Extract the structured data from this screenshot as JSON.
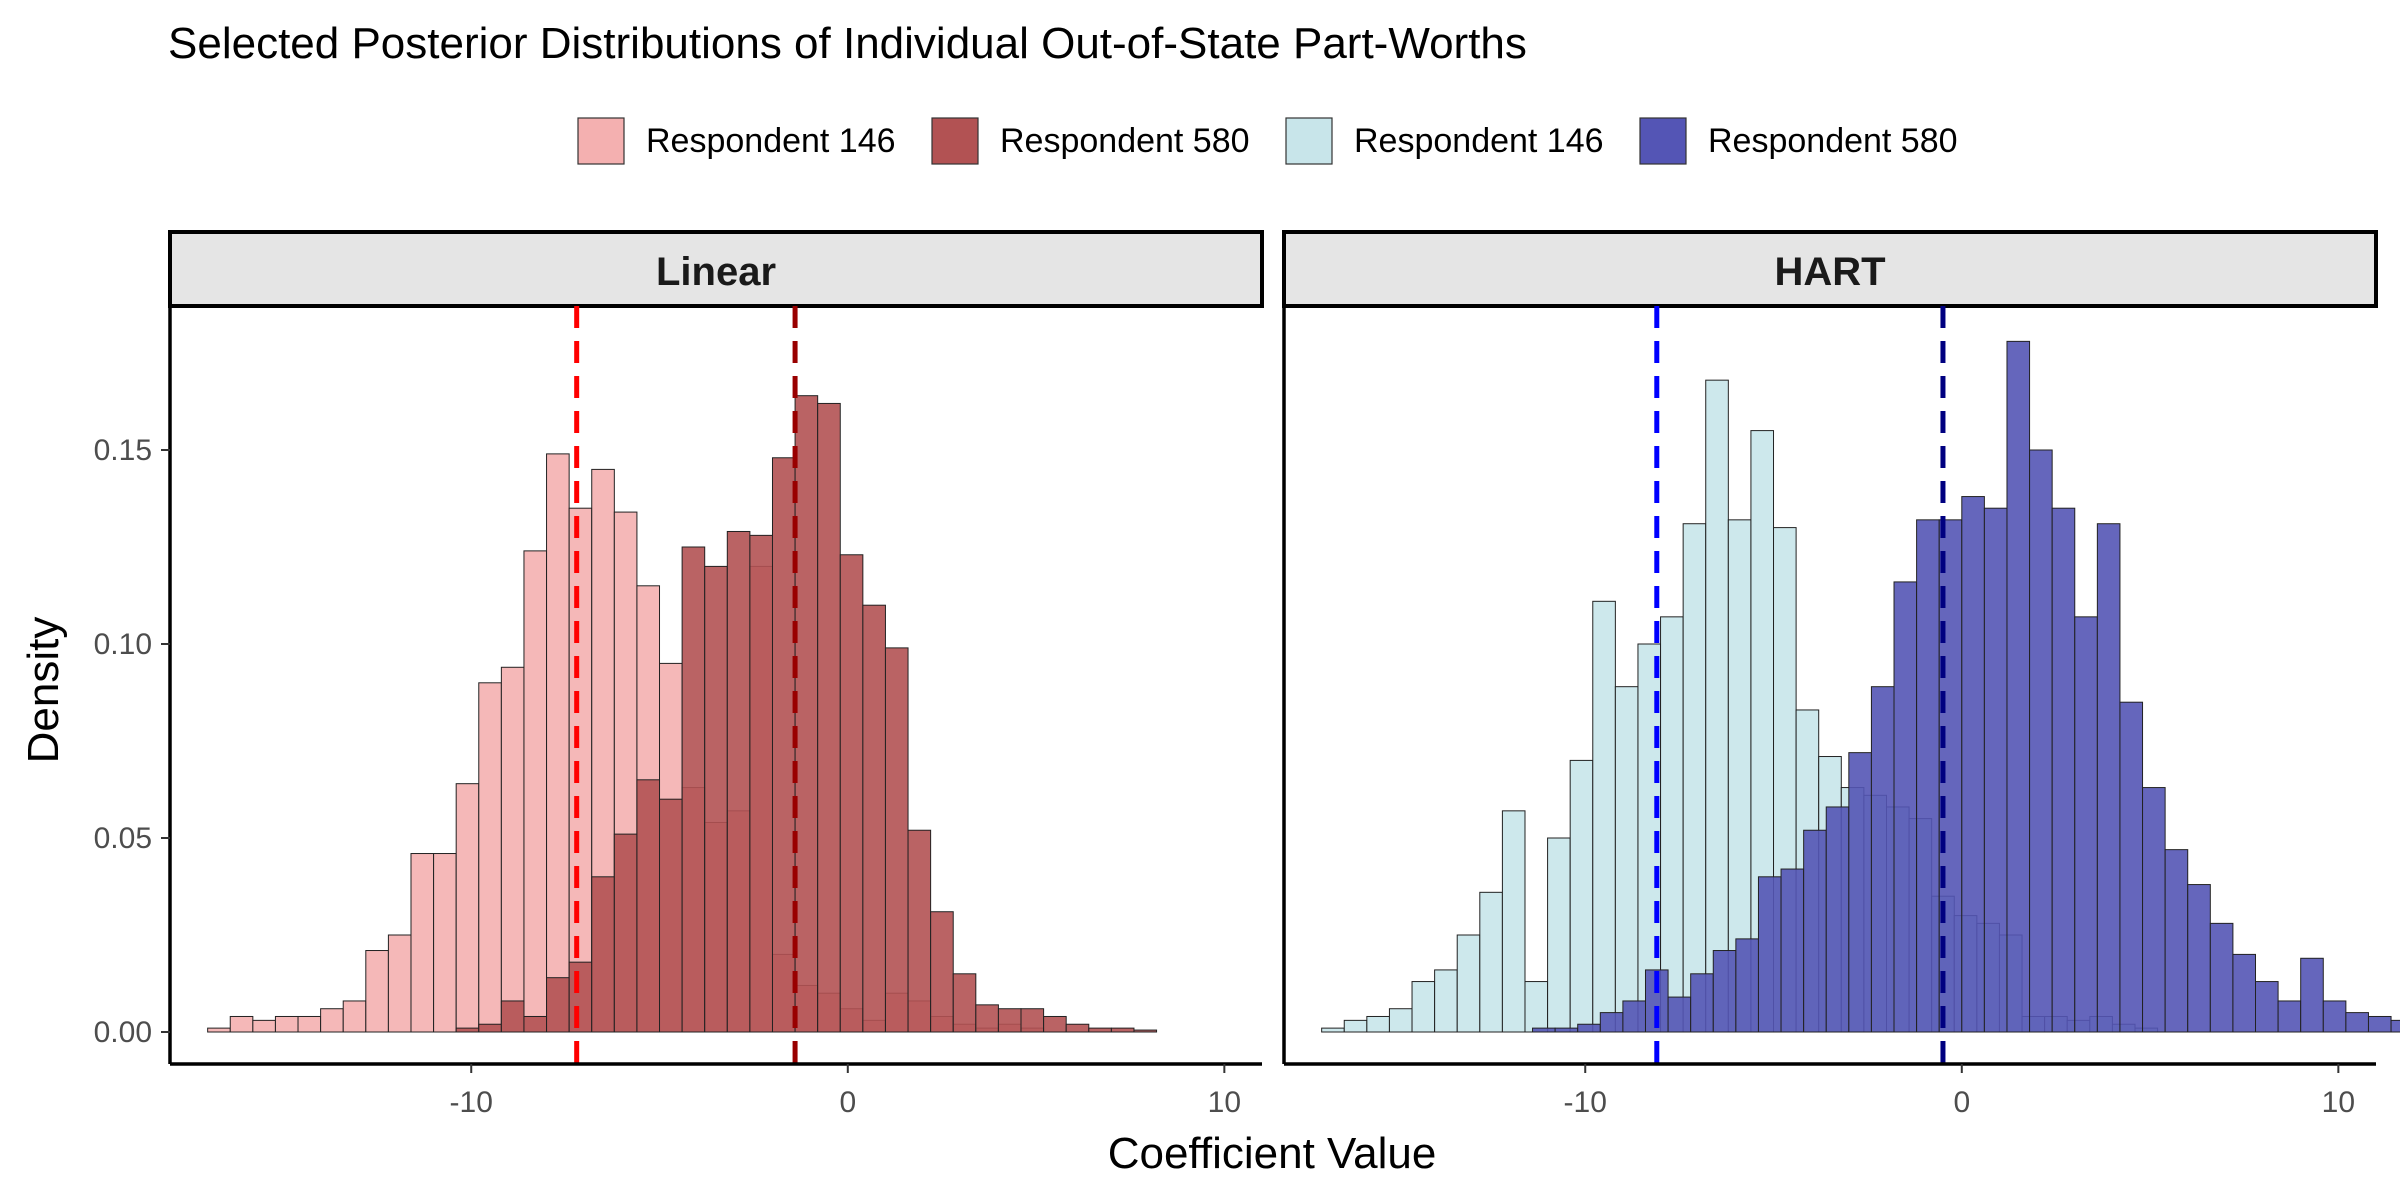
{
  "chart_data": {
    "type": "bar",
    "subtype": "faceted-histogram",
    "title": "Selected Posterior Distributions of Individual Out-of-State Part-Worths",
    "xlabel": "Coefficient Value",
    "ylabel": "Density",
    "xlim": [
      -18,
      11
    ],
    "ylim": [
      0,
      0.18
    ],
    "x_ticks": [
      -10,
      0,
      10
    ],
    "x_tick_labels": [
      "-10",
      "0",
      "10"
    ],
    "y_ticks": [
      0,
      0.05,
      0.1,
      0.15
    ],
    "y_tick_labels": [
      "0.00",
      "0.05",
      "0.10",
      "0.15"
    ],
    "grid": false,
    "legend_position": "top",
    "legend": [
      {
        "label": "Respondent 146",
        "color": "#f4b0b0"
      },
      {
        "label": "Respondent 580",
        "color": "#b25253"
      },
      {
        "label": "Respondent 146",
        "color": "#c8e5ea"
      },
      {
        "label": "Respondent 580",
        "color": "#5455b5"
      }
    ],
    "panels": [
      {
        "label": "Linear",
        "series": [
          {
            "legend_index": 0,
            "color": "#f4b0b0",
            "bin_start": -17.0,
            "bin_width": 0.6,
            "values": [
              0.001,
              0.004,
              0.003,
              0.004,
              0.004,
              0.006,
              0.008,
              0.021,
              0.025,
              0.046,
              0.046,
              0.064,
              0.09,
              0.094,
              0.124,
              0.149,
              0.135,
              0.145,
              0.134,
              0.115,
              0.095,
              0.063,
              0.054,
              0.057,
              0.12,
              0.02,
              0.012,
              0.01,
              0.006,
              0.003,
              0.01,
              0.008,
              0.004,
              0.002,
              0.001,
              0.002,
              0.001
            ]
          },
          {
            "legend_index": 1,
            "color": "#b25253",
            "bin_start": -10.4,
            "bin_width": 0.6,
            "values": [
              0.001,
              0.002,
              0.008,
              0.004,
              0.014,
              0.018,
              0.04,
              0.051,
              0.065,
              0.06,
              0.125,
              0.12,
              0.129,
              0.128,
              0.148,
              0.164,
              0.162,
              0.123,
              0.11,
              0.099,
              0.052,
              0.031,
              0.015,
              0.007,
              0.006,
              0.006,
              0.004,
              0.002,
              0.001,
              0.001,
              0.0005
            ]
          }
        ],
        "means": [
          {
            "x": -7.2,
            "color": "#ff0000"
          },
          {
            "x": -1.4,
            "color": "#990000"
          }
        ]
      },
      {
        "label": "HART",
        "series": [
          {
            "legend_index": 2,
            "color": "#c8e5ea",
            "bin_start": -17.0,
            "bin_width": 0.6,
            "values": [
              0.001,
              0.003,
              0.004,
              0.006,
              0.013,
              0.016,
              0.025,
              0.036,
              0.057,
              0.013,
              0.05,
              0.07,
              0.111,
              0.089,
              0.1,
              0.107,
              0.131,
              0.168,
              0.132,
              0.155,
              0.13,
              0.083,
              0.071,
              0.063,
              0.061,
              0.058,
              0.055,
              0.035,
              0.03,
              0.028,
              0.025,
              0.004,
              0.004,
              0.003,
              0.004,
              0.002,
              0.001
            ]
          },
          {
            "legend_index": 3,
            "color": "#5455b5",
            "bin_start": -11.4,
            "bin_width": 0.6,
            "values": [
              0.001,
              0.001,
              0.002,
              0.005,
              0.008,
              0.016,
              0.009,
              0.015,
              0.021,
              0.024,
              0.04,
              0.042,
              0.052,
              0.058,
              0.072,
              0.089,
              0.116,
              0.132,
              0.132,
              0.138,
              0.135,
              0.178,
              0.15,
              0.135,
              0.107,
              0.131,
              0.085,
              0.063,
              0.047,
              0.038,
              0.028,
              0.02,
              0.013,
              0.008,
              0.019,
              0.008,
              0.005,
              0.004,
              0.003,
              0.002,
              0.001
            ]
          }
        ],
        "means": [
          {
            "x": -8.1,
            "color": "#0000ff"
          },
          {
            "x": -0.5,
            "color": "#000080"
          }
        ]
      }
    ]
  }
}
